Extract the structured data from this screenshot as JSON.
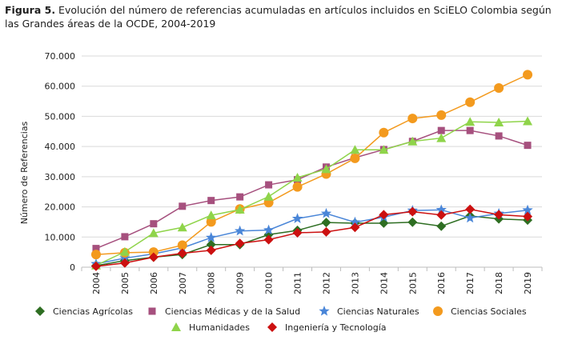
{
  "caption": {
    "label": "Figura 5.",
    "text": " Evolución del número de referencias acumuladas en artículos incluidos en SciELO Colombia según  las Grandes áreas de la OCDE, 2004-2019"
  },
  "chart_data": {
    "type": "line",
    "ylabel": "Número de Referencias",
    "xlabel": "",
    "ylim": [
      0,
      70000
    ],
    "yticks": [
      0,
      10000,
      20000,
      30000,
      40000,
      50000,
      60000,
      70000
    ],
    "ytick_labels": [
      "0",
      "10.000",
      "20.000",
      "30.000",
      "40.000",
      "50.000",
      "60.000",
      "70.000"
    ],
    "grid": "horizontal",
    "legend_position": "bottom",
    "categories": [
      "2004",
      "2005",
      "2006",
      "2007",
      "2008",
      "2009",
      "2010",
      "2011",
      "2012",
      "2013",
      "2014",
      "2015",
      "2016",
      "2017",
      "2018",
      "2019"
    ],
    "series": [
      {
        "name": "Ciencias Agrícolas",
        "color": "#2e6e22",
        "marker": "diamond",
        "values": [
          500,
          2200,
          3300,
          4200,
          7500,
          7500,
          10800,
          12200,
          14800,
          14600,
          14600,
          14900,
          13600,
          17000,
          16000,
          15600
        ]
      },
      {
        "name": "Ciencias Médicas y de la Salud",
        "color": "#a6507e",
        "marker": "square",
        "values": [
          6200,
          10100,
          14400,
          20200,
          22100,
          23300,
          27300,
          29000,
          33200,
          36300,
          39000,
          41700,
          45300,
          45300,
          43500,
          40400
        ]
      },
      {
        "name": "Ciencias Naturales",
        "color": "#4a86d8",
        "marker": "star",
        "values": [
          1100,
          3000,
          4400,
          6400,
          9800,
          12000,
          12300,
          16100,
          17800,
          14900,
          16600,
          18800,
          19000,
          16300,
          17800,
          18900
        ]
      },
      {
        "name": "Ciencias Sociales",
        "color": "#f39a1e",
        "marker": "circle",
        "values": [
          4200,
          4800,
          5000,
          7300,
          15000,
          19300,
          21400,
          26600,
          30900,
          36100,
          44600,
          49300,
          50400,
          54700,
          59400,
          63800
        ]
      },
      {
        "name": "Humanidades",
        "color": "#8fd44a",
        "marker": "triangle",
        "values": [
          600,
          5100,
          11300,
          13200,
          17200,
          19100,
          23400,
          29700,
          32500,
          38900,
          38900,
          41700,
          42800,
          48200,
          48000,
          48400
        ]
      },
      {
        "name": "Ingeniería y Tecnología",
        "color": "#cc1010",
        "marker": "diamond",
        "values": [
          300,
          1400,
          3300,
          4600,
          5600,
          7900,
          9100,
          11400,
          11700,
          13200,
          17400,
          18400,
          17300,
          19200,
          17400,
          16800
        ]
      }
    ]
  }
}
